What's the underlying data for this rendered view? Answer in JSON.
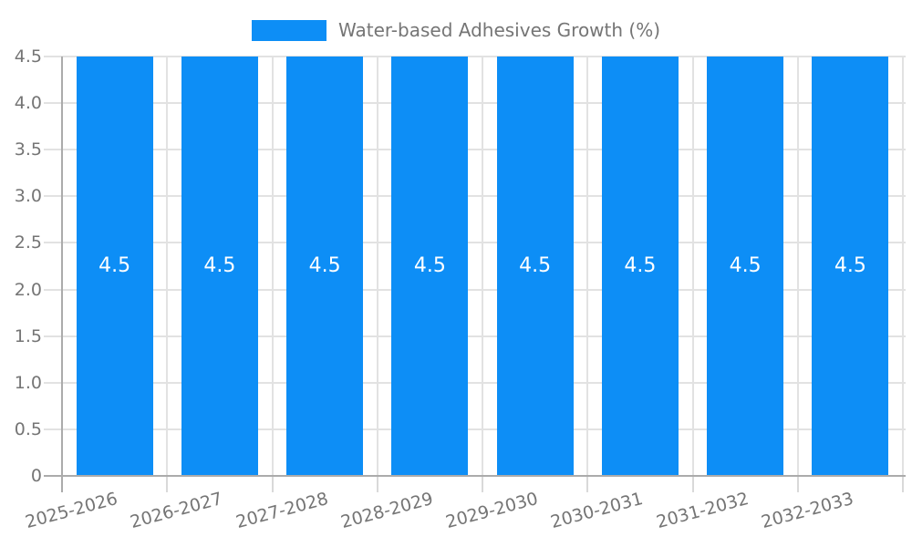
{
  "chart_data": {
    "type": "bar",
    "title": "",
    "legend_label": "Water-based Adhesives Growth (%)",
    "legend_position": "top-center",
    "categories": [
      "2025-2026",
      "2026-2027",
      "2027-2028",
      "2028-2029",
      "2029-2030",
      "2030-2031",
      "2031-2032",
      "2032-2033"
    ],
    "series": [
      {
        "name": "Water-based Adhesives Growth (%)",
        "values": [
          4.5,
          4.5,
          4.5,
          4.5,
          4.5,
          4.5,
          4.5,
          4.5
        ]
      }
    ],
    "bar_value_labels": [
      "4.5",
      "4.5",
      "4.5",
      "4.5",
      "4.5",
      "4.5",
      "4.5",
      "4.5"
    ],
    "xlabel": "",
    "ylabel": "",
    "ylim": [
      0,
      4.5
    ],
    "yticks": [
      {
        "value": 4.5,
        "label": "4.5"
      },
      {
        "value": 4.0,
        "label": "4.0"
      },
      {
        "value": 3.5,
        "label": "3.5"
      },
      {
        "value": 3.0,
        "label": "3.0"
      },
      {
        "value": 2.5,
        "label": "2.5"
      },
      {
        "value": 2.0,
        "label": "2.0"
      },
      {
        "value": 1.5,
        "label": "1.5"
      },
      {
        "value": 1.0,
        "label": "1.0"
      },
      {
        "value": 0.5,
        "label": "0.5"
      },
      {
        "value": 0,
        "label": "0"
      }
    ],
    "grid": true,
    "x_tick_rotation_deg": -15,
    "colors": {
      "bar": "#0d8ef6",
      "grid": "#e2e2e2",
      "axis": "#ababab",
      "tick": "#d9d9d9",
      "label": "#757575",
      "bar_label": "#ffffff",
      "background": "#ffffff"
    }
  }
}
